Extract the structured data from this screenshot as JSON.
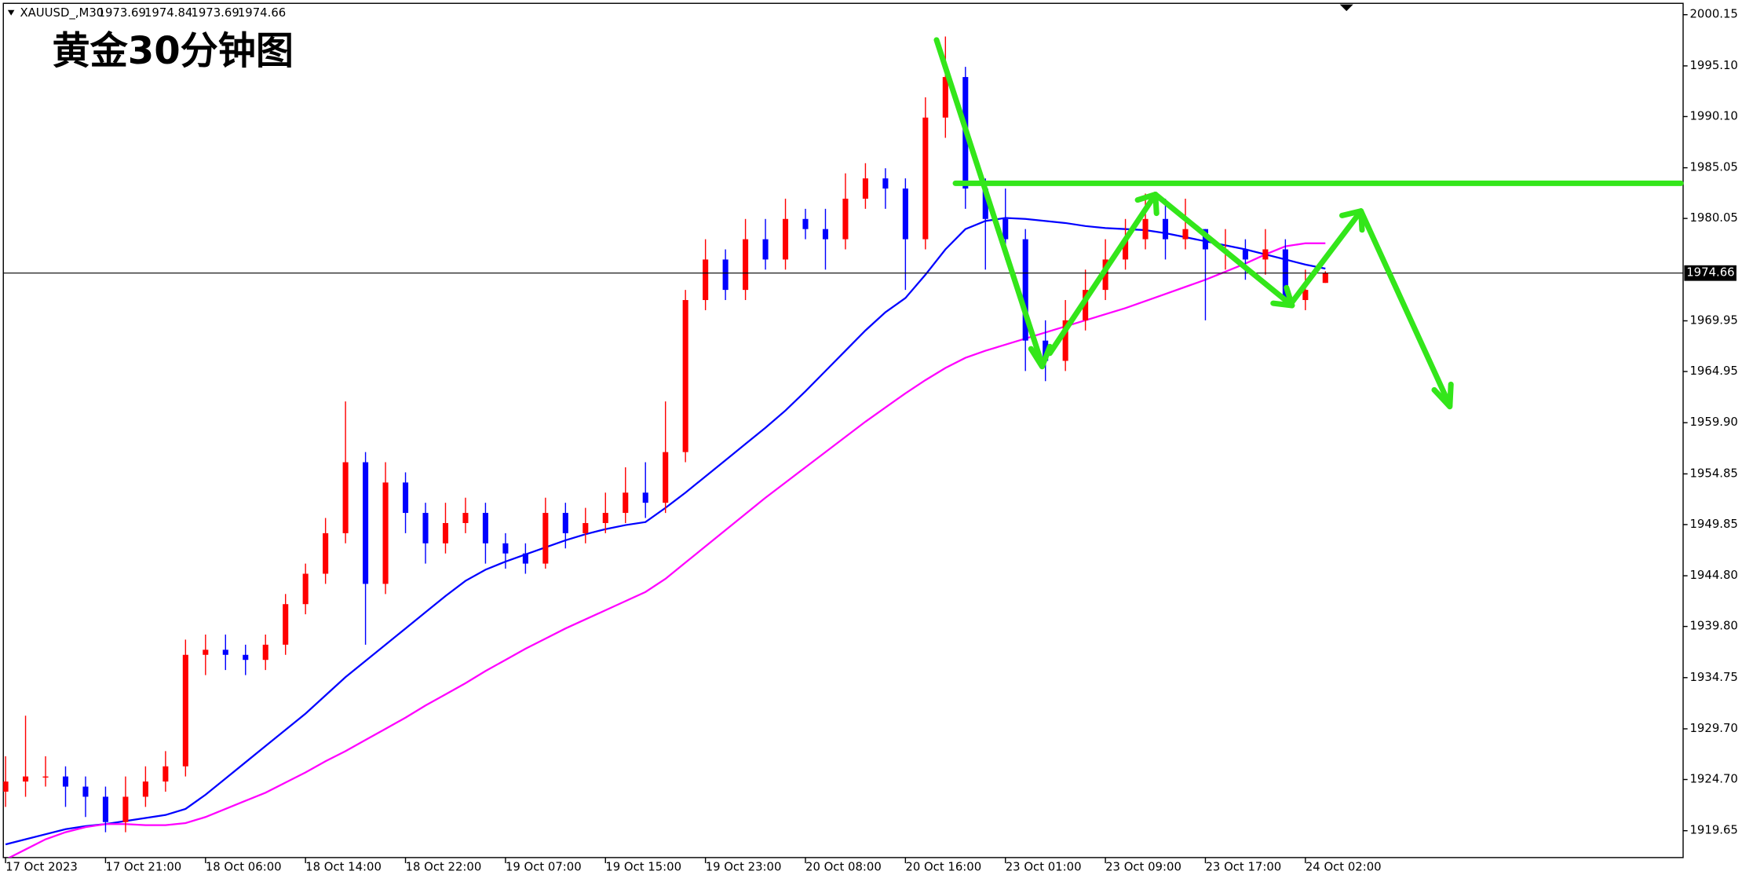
{
  "chart_data": {
    "type": "candlestick",
    "symbol": "XAUUSD_,M30",
    "annotation": "黄金30分钟图",
    "annotation_color": "#1a1acc",
    "up_color": "#ff0000",
    "down_color": "#0000ff",
    "categories": [
      "17 Oct 2023",
      null,
      null,
      null,
      null,
      "17 Oct 21:00",
      null,
      null,
      null,
      null,
      "18 Oct 06:00",
      null,
      null,
      null,
      null,
      "18 Oct 14:00",
      null,
      null,
      null,
      null,
      "18 Oct 22:00",
      null,
      null,
      null,
      null,
      "19 Oct 07:00",
      null,
      null,
      null,
      null,
      "19 Oct 15:00",
      null,
      null,
      null,
      null,
      "19 Oct 23:00",
      null,
      null,
      null,
      null,
      "20 Oct 08:00",
      null,
      null,
      null,
      null,
      "20 Oct 16:00",
      null,
      null,
      null,
      null,
      "23 Oct 01:00",
      null,
      null,
      null,
      null,
      "23 Oct 09:00",
      null,
      null,
      null,
      null,
      "23 Oct 17:00",
      null,
      null,
      null,
      null,
      "24 Oct 02:00",
      null
    ],
    "open": [
      1923.5,
      1924.5,
      1925,
      1925,
      1924,
      1923,
      1920.5,
      1923,
      1924.5,
      1926,
      1937,
      1937.5,
      1937,
      1936.5,
      1938,
      1942,
      1945,
      1949,
      1956,
      1944,
      1954,
      1951,
      1948,
      1950,
      1951,
      1948,
      1947,
      1946,
      1951,
      1949,
      1950,
      1951,
      1953,
      1952,
      1957,
      1972,
      1976,
      1973,
      1978,
      1976,
      1980,
      1979,
      1978,
      1982,
      1984,
      1983,
      1978,
      1990,
      1994,
      1983,
      1980,
      1978,
      1968,
      1966,
      1970,
      1973,
      1976,
      1978,
      1980,
      1978,
      1979,
      1977,
      1977,
      1976,
      1977,
      1972,
      1973.69
    ],
    "high": [
      1927,
      1931,
      1927,
      1926,
      1925,
      1924,
      1925,
      1926,
      1927.5,
      1938.5,
      1939,
      1939,
      1938,
      1939,
      1943,
      1946,
      1950.5,
      1962,
      1957,
      1956,
      1955,
      1952,
      1952,
      1952.5,
      1952,
      1949,
      1948,
      1952.5,
      1952,
      1951.5,
      1953,
      1955.5,
      1956,
      1962,
      1973,
      1978,
      1977,
      1980,
      1980,
      1982,
      1981,
      1981,
      1984.5,
      1985.5,
      1985,
      1984,
      1992,
      1998,
      1995,
      1984,
      1983,
      1979,
      1970,
      1972,
      1975,
      1978,
      1980,
      1982.5,
      1982,
      1982,
      1979,
      1979,
      1978,
      1979,
      1978,
      1975,
      1974.84
    ],
    "low": [
      1922,
      1923,
      1924,
      1922,
      1921,
      1919.5,
      1919.5,
      1922,
      1923.5,
      1925,
      1935,
      1935.5,
      1935,
      1935.5,
      1937,
      1941,
      1944,
      1948,
      1938,
      1943,
      1949,
      1946,
      1947,
      1949,
      1946,
      1945.5,
      1945,
      1945.5,
      1947.5,
      1948,
      1949,
      1950,
      1950.5,
      1951,
      1956,
      1971,
      1972,
      1972,
      1975,
      1975,
      1978,
      1975,
      1977,
      1981,
      1981,
      1973,
      1977,
      1988,
      1981,
      1975,
      1976,
      1965,
      1964,
      1965,
      1969,
      1972,
      1975,
      1977,
      1976,
      1977,
      1970,
      1975,
      1974,
      1974.5,
      1971.5,
      1971,
      1973.69
    ],
    "close": [
      1924.5,
      1925,
      1925,
      1924,
      1923,
      1920.5,
      1923,
      1924.5,
      1926,
      1937,
      1937.5,
      1937,
      1936.5,
      1938,
      1942,
      1945,
      1949,
      1956,
      1944,
      1954,
      1951,
      1948,
      1950,
      1951,
      1948,
      1947,
      1946,
      1951,
      1949,
      1950,
      1951,
      1953,
      1952,
      1957,
      1972,
      1976,
      1973,
      1978,
      1976,
      1980,
      1979,
      1978,
      1982,
      1984,
      1983,
      1978,
      1990,
      1994,
      1983,
      1980,
      1978,
      1968,
      1966,
      1970,
      1973,
      1976,
      1978,
      1980,
      1978,
      1979,
      1977,
      1977,
      1976,
      1977,
      1972,
      1973,
      1974.66
    ],
    "series": [
      {
        "color": "#0000ff",
        "values": [
          1918.3,
          1918.8,
          1919.3,
          1919.8,
          1920.1,
          1920.3,
          1920.6,
          1920.9,
          1921.2,
          1921.8,
          1923.2,
          1924.8,
          1926.4,
          1928.0,
          1929.6,
          1931.2,
          1933.0,
          1934.8,
          1936.4,
          1938.0,
          1939.6,
          1941.2,
          1942.8,
          1944.3,
          1945.4,
          1946.2,
          1946.9,
          1947.6,
          1948.3,
          1948.9,
          1949.4,
          1949.8,
          1950.1,
          1951.5,
          1953.0,
          1954.6,
          1956.2,
          1957.8,
          1959.4,
          1961.1,
          1963.0,
          1965.0,
          1967.0,
          1969.0,
          1970.8,
          1972.2,
          1974.5,
          1977.0,
          1979.0,
          1979.8,
          1980.1,
          1980.0,
          1979.8,
          1979.6,
          1979.3,
          1979.1,
          1979.0,
          1978.9,
          1978.6,
          1978.2,
          1977.8,
          1977.4,
          1977.0,
          1976.5,
          1976.0,
          1975.5,
          1975.1
        ]
      },
      {
        "color": "#ff00ff",
        "values": [
          1916.8,
          1917.8,
          1918.8,
          1919.5,
          1920.0,
          1920.3,
          1920.3,
          1920.2,
          1920.2,
          1920.4,
          1921.0,
          1921.8,
          1922.6,
          1923.4,
          1924.4,
          1925.4,
          1926.5,
          1927.5,
          1928.6,
          1929.7,
          1930.8,
          1932.0,
          1933.1,
          1934.2,
          1935.4,
          1936.5,
          1937.6,
          1938.6,
          1939.6,
          1940.5,
          1941.4,
          1942.3,
          1943.2,
          1944.5,
          1946.1,
          1947.7,
          1949.3,
          1950.9,
          1952.5,
          1954.0,
          1955.5,
          1957.0,
          1958.5,
          1960.0,
          1961.4,
          1962.8,
          1964.1,
          1965.3,
          1966.3,
          1967.0,
          1967.6,
          1968.2,
          1968.8,
          1969.4,
          1970.0,
          1970.6,
          1971.2,
          1971.9,
          1972.6,
          1973.3,
          1974.0,
          1974.8,
          1975.6,
          1976.5,
          1977.3,
          1977.6,
          1977.6
        ]
      }
    ],
    "ylim": [
      1917.0,
      2001.6
    ],
    "yticks": [
      2000.15,
      {
        "value": 1995.1,
        "label": "1995.10"
      },
      {
        "value": 1990.1,
        "label": "1990.10"
      },
      1985.05,
      1980.05,
      1969.95,
      1964.95,
      {
        "value": 1959.9,
        "label": "1959.90"
      },
      1954.85,
      1949.85,
      {
        "value": 1944.8,
        "label": "1944.80"
      },
      {
        "value": 1939.8,
        "label": "1939.80"
      },
      1934.75,
      {
        "value": 1929.7,
        "label": "1929.70"
      },
      {
        "value": 1924.7,
        "label": "1924.70"
      },
      1919.65
    ],
    "grid": false
  }
}
